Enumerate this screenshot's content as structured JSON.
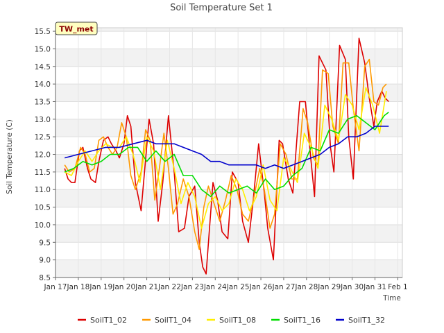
{
  "chart_data": {
    "type": "line",
    "title": "Soil Temperature Set 1",
    "badge": "TW_met",
    "xlabel": "Time",
    "ylabel": "Soil Temperature (C)",
    "xlim": [
      0,
      15.2
    ],
    "ylim": [
      8.5,
      15.6
    ],
    "x_ticks": [
      {
        "value": 0,
        "label": "Jan 17"
      },
      {
        "value": 1,
        "label": "Jan 18"
      },
      {
        "value": 2,
        "label": "Jan 19"
      },
      {
        "value": 3,
        "label": "Jan 20"
      },
      {
        "value": 4,
        "label": "Jan 21"
      },
      {
        "value": 5,
        "label": "Jan 22"
      },
      {
        "value": 6,
        "label": "Jan 23"
      },
      {
        "value": 7,
        "label": "Jan 24"
      },
      {
        "value": 8,
        "label": "Jan 25"
      },
      {
        "value": 9,
        "label": "Jan 26"
      },
      {
        "value": 10,
        "label": "Jan 27"
      },
      {
        "value": 11,
        "label": "Jan 28"
      },
      {
        "value": 12,
        "label": "Jan 29"
      },
      {
        "value": 13,
        "label": "Jan 30"
      },
      {
        "value": 14,
        "label": "Jan 31"
      },
      {
        "value": 15,
        "label": "Feb 1"
      }
    ],
    "y_ticks": [
      "8.5",
      "9.0",
      "9.5",
      "10.0",
      "10.5",
      "11.0",
      "11.5",
      "12.0",
      "12.5",
      "13.0",
      "13.5",
      "14.0",
      "14.5",
      "15.0",
      "15.5"
    ],
    "grid": true,
    "legend_position": "bottom",
    "series": [
      {
        "name": "SoilT1_02",
        "color": "#dd0000",
        "x": [
          0.4,
          0.55,
          0.7,
          0.85,
          1.05,
          1.2,
          1.4,
          1.55,
          1.75,
          1.9,
          2.1,
          2.3,
          2.45,
          2.65,
          2.8,
          3.0,
          3.15,
          3.3,
          3.5,
          3.75,
          3.9,
          4.1,
          4.3,
          4.5,
          4.7,
          4.95,
          5.2,
          5.4,
          5.65,
          5.85,
          6.1,
          6.3,
          6.45,
          6.6,
          6.75,
          6.9,
          7.1,
          7.3,
          7.55,
          7.75,
          8.0,
          8.2,
          8.45,
          8.65,
          8.9,
          9.15,
          9.3,
          9.55,
          9.8,
          9.95,
          10.2,
          10.4,
          10.7,
          10.95,
          11.2,
          11.35,
          11.55,
          11.85,
          12.05,
          12.2,
          12.45,
          12.7,
          12.85,
          13.05,
          13.3,
          13.55,
          13.75,
          13.95,
          14.1,
          14.3,
          14.45,
          14.6
        ],
        "y": [
          11.6,
          11.3,
          11.2,
          11.2,
          12.1,
          12.2,
          11.6,
          11.3,
          11.2,
          11.8,
          12.4,
          12.5,
          12.3,
          12.1,
          11.9,
          12.3,
          13.1,
          12.8,
          11.2,
          10.4,
          11.5,
          13.0,
          12.3,
          10.1,
          11.2,
          13.1,
          11.5,
          9.8,
          9.9,
          10.8,
          11.1,
          9.5,
          8.8,
          8.6,
          9.9,
          11.2,
          10.7,
          9.8,
          9.6,
          11.5,
          11.2,
          10.1,
          9.5,
          10.6,
          12.3,
          10.9,
          9.9,
          9.0,
          12.4,
          12.3,
          11.3,
          10.9,
          13.5,
          13.5,
          11.8,
          10.8,
          14.8,
          14.4,
          12.2,
          11.5,
          15.1,
          14.7,
          12.5,
          11.3,
          15.3,
          14.6,
          13.6,
          12.8,
          13.5,
          13.8,
          13.6,
          13.5
        ]
      },
      {
        "name": "SoilT1_04",
        "color": "#ff9900",
        "x": [
          0.4,
          0.6,
          0.85,
          1.1,
          1.3,
          1.5,
          1.7,
          1.9,
          2.1,
          2.3,
          2.5,
          2.7,
          2.9,
          3.1,
          3.3,
          3.5,
          3.75,
          3.95,
          4.15,
          4.35,
          4.55,
          4.75,
          4.95,
          5.15,
          5.35,
          5.6,
          5.85,
          6.1,
          6.3,
          6.5,
          6.7,
          6.95,
          7.2,
          7.45,
          7.7,
          7.95,
          8.2,
          8.45,
          8.7,
          8.95,
          9.15,
          9.4,
          9.6,
          9.85,
          10.1,
          10.35,
          10.6,
          10.85,
          11.05,
          11.3,
          11.5,
          11.7,
          11.95,
          12.15,
          12.4,
          12.6,
          12.85,
          13.05,
          13.3,
          13.55,
          13.75,
          13.95,
          14.15,
          14.35,
          14.5
        ],
        "y": [
          11.7,
          11.5,
          11.6,
          12.2,
          12.0,
          11.5,
          11.6,
          12.4,
          12.5,
          12.2,
          12.0,
          12.2,
          12.9,
          12.5,
          11.4,
          11.0,
          11.5,
          12.7,
          12.4,
          10.7,
          11.6,
          12.6,
          11.6,
          10.3,
          10.6,
          11.3,
          10.8,
          9.8,
          9.3,
          10.5,
          11.1,
          10.6,
          10.1,
          10.7,
          11.4,
          11.0,
          10.3,
          10.1,
          10.8,
          11.6,
          11.0,
          9.9,
          10.3,
          12.3,
          12.0,
          11.3,
          11.3,
          13.3,
          12.9,
          11.9,
          11.7,
          14.4,
          14.3,
          12.8,
          12.3,
          14.6,
          14.6,
          13.3,
          12.1,
          14.5,
          14.7,
          13.5,
          13.4,
          13.9,
          14.0
        ]
      },
      {
        "name": "SoilT1_08",
        "color": "#ffee00",
        "x": [
          0.4,
          0.7,
          1.0,
          1.3,
          1.6,
          1.9,
          2.2,
          2.5,
          2.8,
          3.1,
          3.4,
          3.7,
          4.0,
          4.3,
          4.6,
          4.9,
          5.2,
          5.5,
          5.8,
          6.1,
          6.4,
          6.7,
          7.0,
          7.3,
          7.6,
          7.9,
          8.2,
          8.5,
          8.8,
          9.1,
          9.4,
          9.7,
          10.0,
          10.3,
          10.6,
          10.9,
          11.2,
          11.5,
          11.8,
          12.1,
          12.4,
          12.7,
          13.0,
          13.3,
          13.6,
          13.9,
          14.2,
          14.5
        ],
        "y": [
          11.5,
          11.4,
          11.8,
          12.1,
          11.8,
          12.1,
          12.3,
          12.2,
          12.2,
          12.5,
          12.0,
          11.2,
          12.5,
          12.1,
          11.0,
          12.4,
          11.6,
          10.6,
          11.2,
          10.8,
          9.9,
          10.6,
          10.8,
          10.4,
          10.6,
          11.3,
          11.0,
          10.4,
          10.8,
          11.7,
          10.7,
          10.4,
          11.9,
          11.6,
          11.2,
          12.6,
          12.2,
          11.6,
          13.4,
          13.0,
          12.4,
          13.7,
          13.4,
          12.7,
          13.9,
          13.4,
          12.6,
          13.8
        ]
      },
      {
        "name": "SoilT1_16",
        "color": "#00dd00",
        "x": [
          0.4,
          0.8,
          1.2,
          1.6,
          2.0,
          2.4,
          2.8,
          3.2,
          3.6,
          4.0,
          4.4,
          4.8,
          5.2,
          5.6,
          6.0,
          6.4,
          6.8,
          7.2,
          7.6,
          8.0,
          8.4,
          8.8,
          9.2,
          9.6,
          10.0,
          10.4,
          10.8,
          11.2,
          11.6,
          12.0,
          12.4,
          12.8,
          13.2,
          13.6,
          14.0,
          14.4,
          14.6
        ],
        "y": [
          11.5,
          11.6,
          11.8,
          11.7,
          11.8,
          12.0,
          12.0,
          12.2,
          12.2,
          11.8,
          12.1,
          11.8,
          12.0,
          11.4,
          11.4,
          11.0,
          10.8,
          11.1,
          10.9,
          11.0,
          11.1,
          10.9,
          11.3,
          11.0,
          11.1,
          11.4,
          11.6,
          12.2,
          12.1,
          12.7,
          12.6,
          13.0,
          13.1,
          12.9,
          12.7,
          13.1,
          13.2
        ]
      },
      {
        "name": "SoilT1_32",
        "color": "#0000cc",
        "x": [
          0.4,
          1.0,
          1.6,
          2.2,
          2.8,
          3.4,
          4.0,
          4.4,
          4.8,
          5.2,
          5.6,
          6.0,
          6.4,
          6.8,
          7.2,
          7.6,
          8.0,
          8.4,
          8.8,
          9.2,
          9.6,
          10.0,
          10.4,
          10.8,
          11.2,
          11.6,
          12.0,
          12.4,
          12.8,
          13.2,
          13.6,
          14.0,
          14.4,
          14.6
        ],
        "y": [
          11.9,
          12.0,
          12.1,
          12.2,
          12.2,
          12.3,
          12.4,
          12.3,
          12.3,
          12.3,
          12.2,
          12.1,
          12.0,
          11.8,
          11.8,
          11.7,
          11.7,
          11.7,
          11.7,
          11.6,
          11.7,
          11.6,
          11.7,
          11.8,
          11.9,
          12.0,
          12.2,
          12.3,
          12.5,
          12.5,
          12.6,
          12.8,
          12.8,
          12.8
        ]
      }
    ]
  }
}
